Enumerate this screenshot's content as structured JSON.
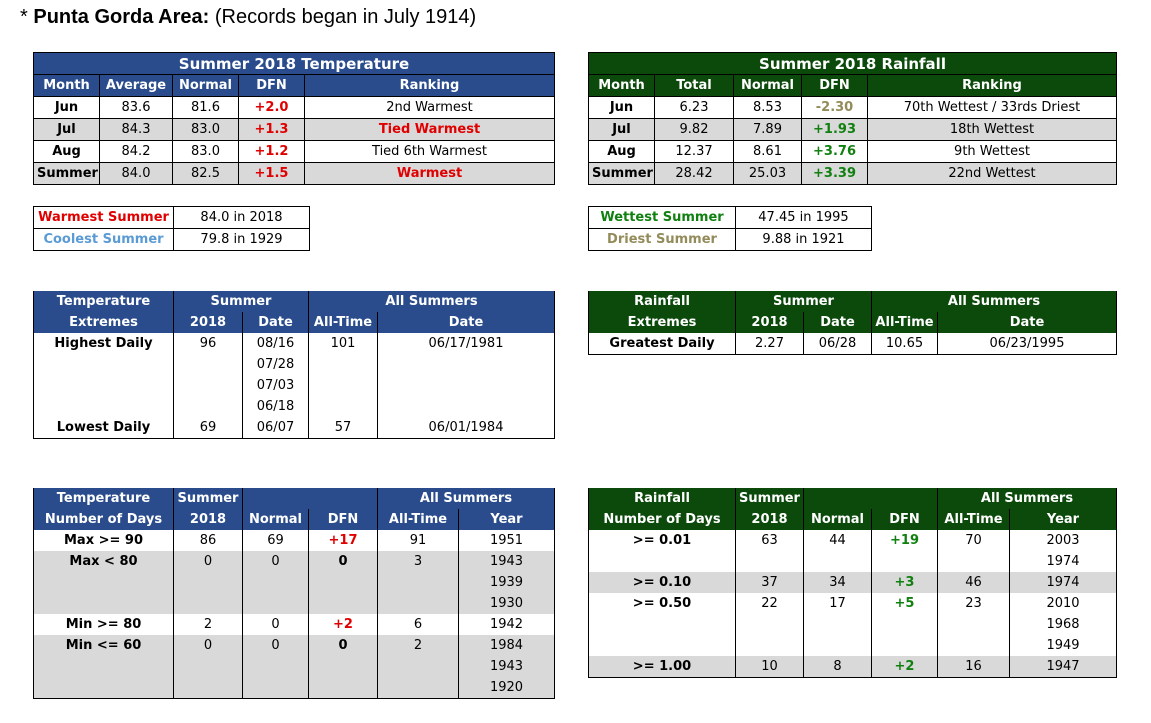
{
  "title": {
    "star": "*",
    "bold": "Punta Gorda Area:",
    "normal": "(Records began in July 1914)"
  },
  "temp_summary": {
    "title": "Summer 2018 Temperature",
    "headers": [
      "Month",
      "Average",
      "Normal",
      "DFN",
      "Ranking"
    ],
    "rows": [
      [
        "Jun",
        "83.6",
        "81.6",
        "+2.0",
        "2nd Warmest"
      ],
      [
        "Jul",
        "84.3",
        "83.0",
        "+1.3",
        "Tied Warmest"
      ],
      [
        "Aug",
        "84.2",
        "83.0",
        "+1.2",
        "Tied 6th Warmest"
      ],
      [
        "Summer",
        "84.0",
        "82.5",
        "+1.5",
        "Warmest"
      ]
    ]
  },
  "rain_summary": {
    "title": "Summer 2018 Rainfall",
    "headers": [
      "Month",
      "Total",
      "Normal",
      "DFN",
      "Ranking"
    ],
    "rows": [
      [
        "Jun",
        "6.23",
        "8.53",
        "-2.30",
        "70th Wettest / 33rds Driest"
      ],
      [
        "Jul",
        "9.82",
        "7.89",
        "+1.93",
        "18th Wettest"
      ],
      [
        "Aug",
        "12.37",
        "8.61",
        "+3.76",
        "9th Wettest"
      ],
      [
        "Summer",
        "28.42",
        "25.03",
        "+3.39",
        "22nd Wettest"
      ]
    ]
  },
  "temp_records": [
    [
      "Warmest Summer",
      "84.0 in 2018"
    ],
    [
      "Coolest Summer",
      "79.8 in 1929"
    ]
  ],
  "rain_records": [
    [
      "Wettest Summer",
      "47.45 in 1995"
    ],
    [
      "Driest Summer",
      "9.88 in 1921"
    ]
  ],
  "temp_extremes": {
    "h1": [
      "Temperature",
      "Summer",
      "All Summers"
    ],
    "h2": [
      "Extremes",
      "2018",
      "Date",
      "All-Time",
      "Date"
    ],
    "rows": [
      [
        "Highest Daily",
        "96",
        "08/16",
        "101",
        "06/17/1981"
      ],
      [
        "",
        "",
        "07/28",
        "",
        ""
      ],
      [
        "",
        "",
        "07/03",
        "",
        ""
      ],
      [
        "",
        "",
        "06/18",
        "",
        ""
      ],
      [
        "Lowest Daily",
        "69",
        "06/07",
        "57",
        "06/01/1984"
      ]
    ]
  },
  "rain_extremes": {
    "h1": [
      "Rainfall",
      "Summer",
      "All Summers"
    ],
    "h2": [
      "Extremes",
      "2018",
      "Date",
      "All-Time",
      "Date"
    ],
    "rows": [
      [
        "Greatest Daily",
        "2.27",
        "06/28",
        "10.65",
        "06/23/1995"
      ]
    ]
  },
  "temp_days": {
    "h1": [
      "Temperature",
      "Summer",
      "All Summers"
    ],
    "h2": [
      "Number of Days",
      "2018",
      "Normal",
      "DFN",
      "All-Time",
      "Year"
    ],
    "rows": [
      [
        "Max >= 90",
        "86",
        "69",
        "+17",
        "91",
        "1951"
      ],
      [
        "Max < 80",
        "0",
        "0",
        "0",
        "3",
        "1943"
      ],
      [
        "",
        "",
        "",
        "",
        "",
        "1939"
      ],
      [
        "",
        "",
        "",
        "",
        "",
        "1930"
      ],
      [
        "Min >= 80",
        "2",
        "0",
        "+2",
        "6",
        "1942"
      ],
      [
        "Min <= 60",
        "0",
        "0",
        "0",
        "2",
        "1984"
      ],
      [
        "",
        "",
        "",
        "",
        "",
        "1943"
      ],
      [
        "",
        "",
        "",
        "",
        "",
        "1920"
      ]
    ]
  },
  "rain_days": {
    "h1": [
      "Rainfall",
      "Summer",
      "All Summers"
    ],
    "h2": [
      "Number of Days",
      "2018",
      "Normal",
      "DFN",
      "All-Time",
      "Year"
    ],
    "rows": [
      [
        ">= 0.01",
        "63",
        "44",
        "+19",
        "70",
        "2003"
      ],
      [
        "",
        "",
        "",
        "",
        "",
        "1974"
      ],
      [
        ">= 0.10",
        "37",
        "34",
        "+3",
        "46",
        "1974"
      ],
      [
        ">= 0.50",
        "22",
        "17",
        "+5",
        "23",
        "2010"
      ],
      [
        "",
        "",
        "",
        "",
        "",
        "1968"
      ],
      [
        "",
        "",
        "",
        "",
        "",
        "1949"
      ],
      [
        ">= 1.00",
        "10",
        "8",
        "+2",
        "16",
        "1947"
      ]
    ]
  },
  "colors": {
    "blue_header": "#2a4c8c",
    "green_header": "#0c4a0c",
    "red": "#e00000",
    "green": "#108010",
    "tan": "#938b5a",
    "light_blue": "#5b9bd5",
    "shade": "#d9d9d9"
  }
}
